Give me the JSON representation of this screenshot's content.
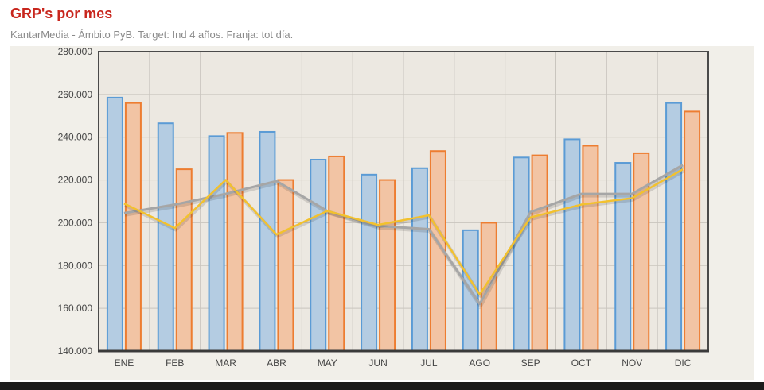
{
  "title": "GRP's por mes",
  "subtitle": "KantarMedia - Ámbito PyB. Target: Ind 4 años. Franja: tot día.",
  "colors": {
    "title": "#c8261d",
    "series_a_fill": "#b4cce2",
    "series_a_stroke": "#5b9bd5",
    "series_b_fill": "#f2c4a4",
    "series_b_stroke": "#ed7d31",
    "line_gray": "#a6a6a6",
    "line_yellow": "#f2c12e",
    "plot_bg": "#ece8e1",
    "panel_bg": "#f1efe9"
  },
  "chart_data": {
    "type": "bar",
    "categories": [
      "ENE",
      "FEB",
      "MAR",
      "ABR",
      "MAY",
      "JUN",
      "JUL",
      "AGO",
      "SEP",
      "OCT",
      "NOV",
      "DIC"
    ],
    "series": [
      {
        "kind": "bar",
        "values": [
          258500,
          246500,
          240500,
          242500,
          229500,
          222500,
          225500,
          196500,
          230500,
          239000,
          228000,
          256000
        ]
      },
      {
        "kind": "bar",
        "values": [
          256000,
          225000,
          242000,
          220000,
          231000,
          220000,
          233500,
          200000,
          231500,
          236000,
          232500,
          252000
        ]
      },
      {
        "kind": "line",
        "values": [
          204500,
          208500,
          213500,
          219500,
          205500,
          198500,
          197000,
          162000,
          205000,
          213500,
          213500,
          227000
        ]
      },
      {
        "kind": "line",
        "values": [
          209000,
          197500,
          220000,
          194500,
          205500,
          199000,
          203500,
          166500,
          202500,
          208500,
          211500,
          225000
        ]
      }
    ],
    "ylim": [
      140000,
      280000
    ],
    "yticks": [
      "140.000",
      "160.000",
      "180.000",
      "200.000",
      "220.000",
      "240.000",
      "260.000",
      "280.000"
    ],
    "ytick_values": [
      140000,
      160000,
      180000,
      200000,
      220000,
      240000,
      260000,
      280000
    ],
    "grid": true,
    "legend": "none"
  }
}
